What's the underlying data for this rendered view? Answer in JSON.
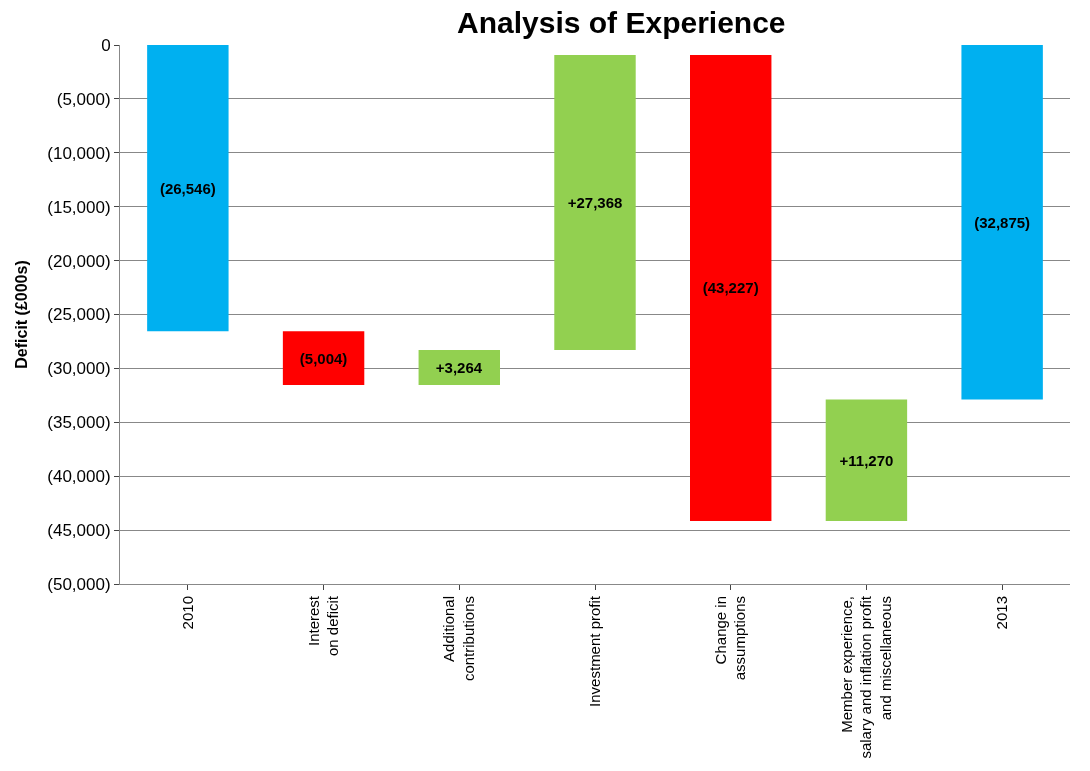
{
  "chart_data": {
    "type": "bar",
    "title": "Analysis of Experience",
    "ylabel": "Deficit (£000s)",
    "categories": [
      "2010",
      "Interest\non deficit",
      "Additional\ncontributions",
      "Investment profit",
      "Change in\nassumptions",
      "Member experience,\nsalary and inflation profit\nand miscellaneous",
      "2013"
    ],
    "base": [
      0,
      -26546,
      -31550,
      -28286,
      -918,
      -44145,
      0
    ],
    "values": [
      -26546,
      -5004,
      3264,
      27368,
      -43227,
      11270,
      -32875
    ],
    "value_labels": [
      "(26,546)",
      "(5,004)",
      "+3,264",
      "+27,368",
      "(43,227)",
      "+11,270",
      "(32,875)"
    ],
    "colors": [
      "#00b0f0",
      "#ff0000",
      "#92d050",
      "#92d050",
      "#ff0000",
      "#92d050",
      "#00b0f0"
    ],
    "ylim": [
      -50000,
      0
    ],
    "yticks": [
      0,
      {
        "value": -5000,
        "label": "(5,000)"
      },
      {
        "value": -10000,
        "label": "(10,000)"
      },
      {
        "value": -15000,
        "label": "(15,000)"
      },
      {
        "value": -20000,
        "label": "(20,000)"
      },
      {
        "value": -25000,
        "label": "(25,000)"
      },
      {
        "value": -30000,
        "label": "(30,000)"
      },
      {
        "value": -35000,
        "label": "(35,000)"
      },
      {
        "value": -40000,
        "label": "(40,000)"
      },
      {
        "value": -45000,
        "label": "(45,000)"
      },
      {
        "value": -50000,
        "label": "(50,000)"
      }
    ],
    "grid": "y"
  }
}
